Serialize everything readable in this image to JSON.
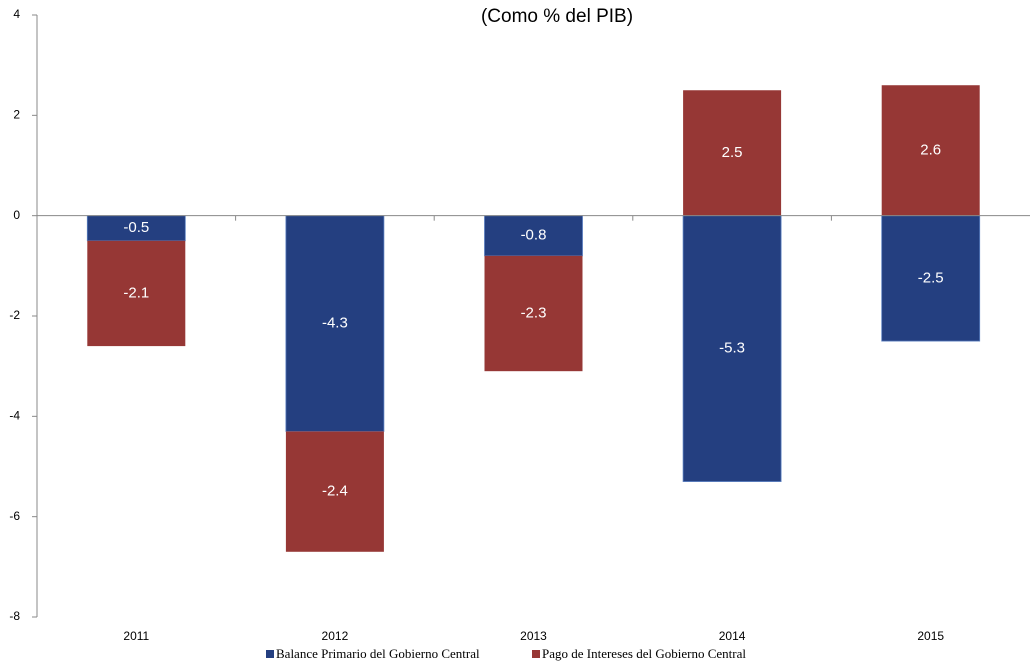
{
  "chart_data": {
    "type": "stacked_bar",
    "title": "(Como % del PIB)",
    "categories": [
      "2011",
      "2012",
      "2013",
      "2014",
      "2015"
    ],
    "series": [
      {
        "name": "Balance Primario del Gobierno Central",
        "color": "#243f80",
        "values": [
          -0.5,
          -4.3,
          -0.8,
          -5.3,
          -2.5
        ]
      },
      {
        "name": "Pago de Intereses del Gobierno Central",
        "color": "#963735",
        "values": [
          -2.1,
          -2.4,
          -2.3,
          2.5,
          2.6
        ]
      }
    ],
    "ylim": [
      -8,
      4
    ],
    "yticks": [
      4,
      2,
      0,
      -2,
      -4,
      -6,
      -8
    ],
    "grid": false,
    "legend": "bottom"
  }
}
